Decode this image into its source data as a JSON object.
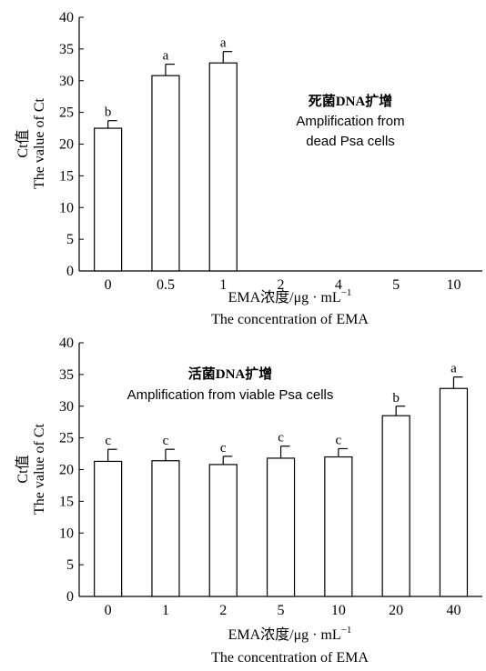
{
  "chart_data": [
    {
      "type": "bar",
      "categories": [
        "0",
        "0.5",
        "1",
        "2",
        "4",
        "5",
        "10"
      ],
      "values": [
        22.5,
        30.8,
        32.8,
        null,
        null,
        null,
        null
      ],
      "errors": [
        1.2,
        1.8,
        1.8,
        null,
        null,
        null,
        null
      ],
      "significance": [
        "b",
        "a",
        "a",
        "",
        "",
        "",
        ""
      ],
      "ylim": [
        0,
        40
      ],
      "yticks": [
        0,
        5,
        10,
        15,
        20,
        25,
        30,
        35,
        40
      ],
      "ylabel_cn": "Ct值",
      "ylabel_en": "The value of Ct",
      "xlabel_cn": "EMA浓度/μg · mL",
      "xlabel_sup": "−1",
      "xlabel_en": "The concentration of EMA",
      "annotation_cn": "死菌DNA扩增",
      "annotation_en": [
        "Amplification from",
        "dead Psa cells"
      ],
      "grid": false,
      "legend": "none"
    },
    {
      "type": "bar",
      "categories": [
        "0",
        "1",
        "2",
        "5",
        "10",
        "20",
        "40"
      ],
      "values": [
        21.3,
        21.4,
        20.8,
        21.8,
        22.0,
        28.5,
        32.8
      ],
      "errors": [
        1.9,
        1.8,
        1.3,
        1.9,
        1.3,
        1.5,
        1.8
      ],
      "significance": [
        "c",
        "c",
        "c",
        "c",
        "c",
        "b",
        "a"
      ],
      "ylim": [
        0,
        40
      ],
      "yticks": [
        0,
        5,
        10,
        15,
        20,
        25,
        30,
        35,
        40
      ],
      "ylabel_cn": "Ct值",
      "ylabel_en": "The value of Ct",
      "xlabel_cn": "EMA浓度/μg · mL",
      "xlabel_sup": "−1",
      "xlabel_en": "The concentration of EMA",
      "annotation_cn": "活菌DNA扩增",
      "annotation_en": [
        "Amplification from viable Psa cells"
      ],
      "grid": false,
      "legend": "none"
    }
  ]
}
